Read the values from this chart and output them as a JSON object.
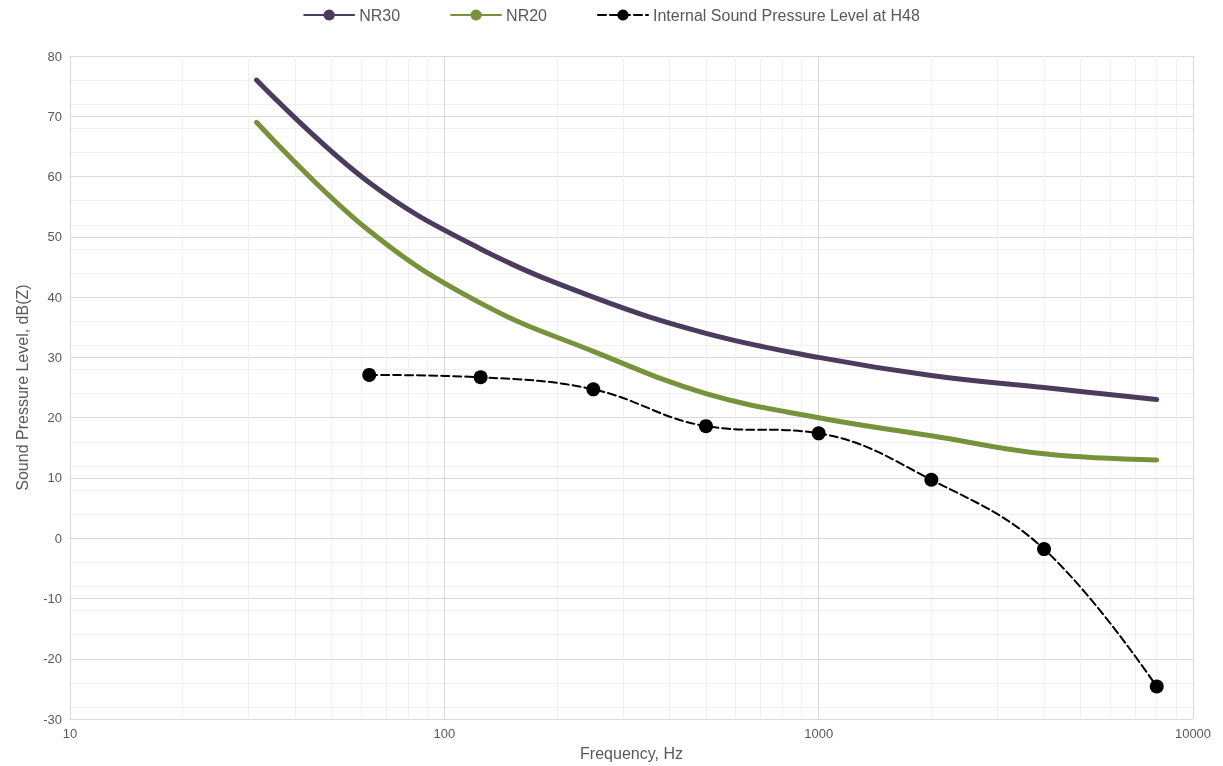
{
  "chart_data": {
    "type": "line",
    "xlabel": "Frequency, Hz",
    "ylabel": "Sound Pressure Level, dB(Z)",
    "log": "x",
    "xlim": [
      10,
      10000
    ],
    "xticks": [
      10,
      100,
      1000,
      10000
    ],
    "ylim": [
      -30,
      80
    ],
    "yticks": [
      -30,
      -20,
      -10,
      0,
      10,
      20,
      30,
      40,
      50,
      60,
      70,
      80
    ],
    "grid": true,
    "legend": "top",
    "series": [
      {
        "name": "NR30",
        "color": "#4b3b5e",
        "marker": "none",
        "line_style": "solid",
        "x": [
          31.5,
          63,
          125,
          250,
          500,
          1000,
          2000,
          4000,
          8000
        ],
        "values": [
          76,
          59,
          48,
          40,
          34,
          30,
          27,
          25,
          23
        ]
      },
      {
        "name": "NR20",
        "color": "#76933c",
        "marker": "none",
        "line_style": "solid",
        "x": [
          31.5,
          63,
          125,
          250,
          500,
          1000,
          2000,
          4000,
          8000
        ],
        "values": [
          69,
          51,
          39,
          31,
          24,
          20,
          17,
          14,
          13
        ]
      },
      {
        "name": "Internal Sound Pressure Level at H48",
        "color": "#000000",
        "marker": "circle",
        "line_style": "dashed",
        "x": [
          63,
          125,
          250,
          500,
          1000,
          2000,
          4000,
          8000
        ],
        "values": [
          27.1,
          26.7,
          24.7,
          18.6,
          17.4,
          9.7,
          -1.8,
          -24.6
        ]
      }
    ]
  }
}
